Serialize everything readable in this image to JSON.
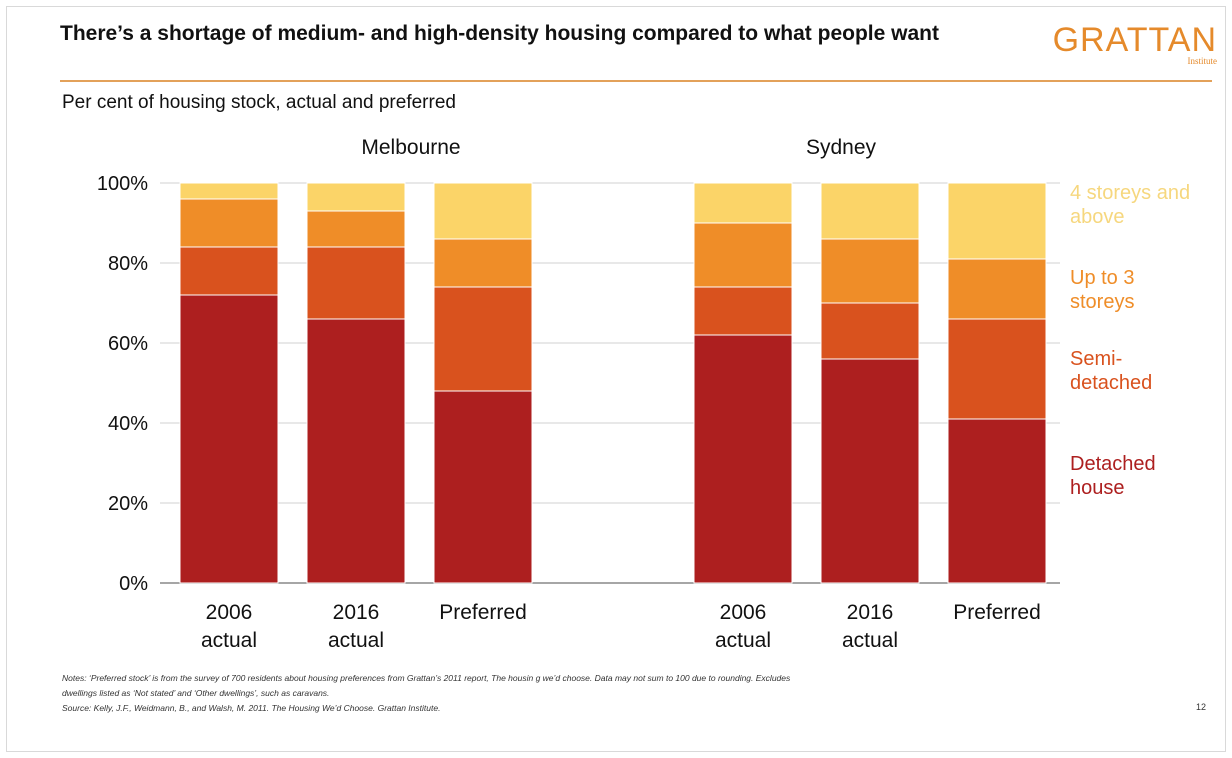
{
  "header": {
    "title": "There’s a shortage of medium- and high-density housing compared to what people want",
    "logo_main": "GRATTAN",
    "logo_sub": "Institute"
  },
  "subtitle": "Per cent of housing stock, actual and preferred",
  "page_number": "12",
  "notes": {
    "line1": "Notes: ‘Preferred stock’ is from the survey of 700 residents about housing preferences from Grattan’s 2011 report, The housin      g we’d choose. Data may not sum to 100 due to rounding. Excludes",
    "line2": "dwellings listed as ‘Not stated’ and ‘Other dwellings’, such as caravans.",
    "line3": "Source: Kelly, J.F.,   Weidmann, B., and Walsh, M. 2011. The Housing We’d Choose. Grattan Institute."
  },
  "chart_data": {
    "type": "bar",
    "stacked": true,
    "groups": [
      {
        "name": "Melbourne",
        "categories": [
          "2006\nactual",
          "2016\nactual",
          "Preferred"
        ]
      },
      {
        "name": "Sydney",
        "categories": [
          "2006\nactual",
          "2016\nactual",
          "Preferred"
        ]
      }
    ],
    "series": [
      {
        "name": "Detached\nhouse",
        "color": "#ad1f1f",
        "values": [
          [
            72,
            66,
            48
          ],
          [
            62,
            56,
            41
          ]
        ]
      },
      {
        "name": "Semi-\ndetached",
        "color": "#d9521e",
        "values": [
          [
            12,
            18,
            26
          ],
          [
            12,
            14,
            25
          ]
        ]
      },
      {
        "name": "Up to 3\nstoreys",
        "color": "#ef8d28",
        "values": [
          [
            12,
            9,
            12
          ],
          [
            16,
            16,
            15
          ]
        ]
      },
      {
        "name": "4 storeys and\nabove",
        "color": "#fbd468",
        "values": [
          [
            4,
            7,
            14
          ],
          [
            10,
            14,
            19
          ]
        ]
      }
    ],
    "y_ticks": [
      "0%",
      "20%",
      "40%",
      "60%",
      "80%",
      "100%"
    ],
    "ylim": [
      0,
      100
    ],
    "grid": true,
    "legend_position": "right"
  },
  "colors": {
    "legend_text": [
      "#ad1f1f",
      "#d9521e",
      "#ef8d28",
      "#f6d77e"
    ],
    "accent": "#e58a2b"
  }
}
